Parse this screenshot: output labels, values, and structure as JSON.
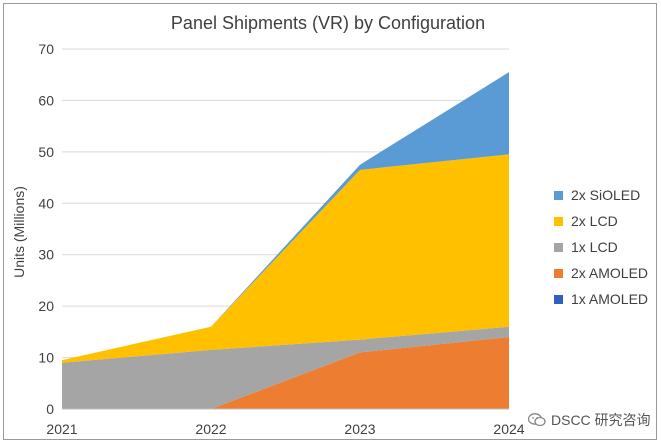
{
  "chart_data": {
    "type": "area",
    "stacked": true,
    "title": "Panel Shipments (VR) by Configuration",
    "xlabel": "",
    "ylabel": "Units (Millions)",
    "x": [
      "2021",
      "2022",
      "2023",
      "2024"
    ],
    "ylim": [
      0,
      70
    ],
    "yticks": [
      0,
      10,
      20,
      30,
      40,
      50,
      60,
      70
    ],
    "grid": true,
    "legend_position": "right",
    "series": [
      {
        "name": "1x AMOLED",
        "values": [
          0,
          0,
          0,
          0
        ],
        "color": "#2f5fbf"
      },
      {
        "name": "2x AMOLED",
        "values": [
          0,
          0,
          11,
          14
        ],
        "color": "#ed7d31"
      },
      {
        "name": "1x LCD",
        "values": [
          9,
          11.5,
          2.5,
          2
        ],
        "color": "#a5a5a5"
      },
      {
        "name": "2x LCD",
        "values": [
          0.5,
          4.5,
          33,
          33.5
        ],
        "color": "#ffc000"
      },
      {
        "name": "2x SiOLED",
        "values": [
          0,
          0,
          1,
          16
        ],
        "color": "#5b9bd5"
      }
    ],
    "legend_order": [
      "2x SiOLED",
      "2x LCD",
      "1x LCD",
      "2x AMOLED",
      "1x AMOLED"
    ]
  },
  "watermark": {
    "text": "DSCC 研究咨询"
  }
}
